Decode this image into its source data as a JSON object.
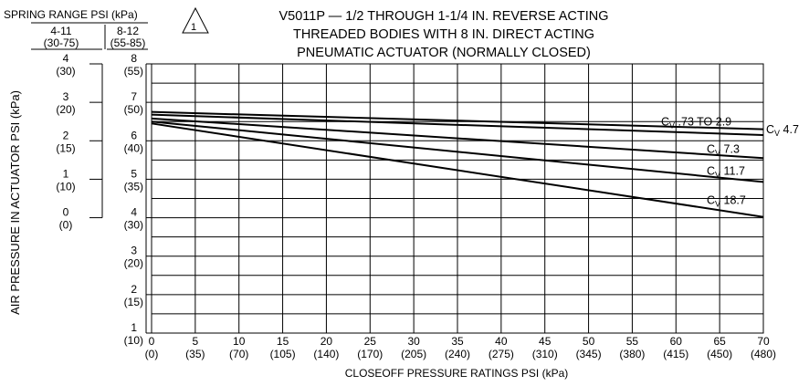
{
  "chart_data": {
    "type": "line",
    "title": [
      "V5011P — 1/2 THROUGH 1-1/4 IN. REVERSE ACTING",
      "THREADED BODIES WITH  8 IN. DIRECT ACTING",
      "PNEUMATIC ACTUATOR (NORMALLY CLOSED)"
    ],
    "xlabel": "CLOSEOFF  PRESSURE  RATINGS  PSI  (kPa)",
    "ylabel": "AIR PRESSURE IN ACTUATOR PSI (kPa)",
    "xlim": [
      0,
      70
    ],
    "ylim": [
      1,
      8
    ],
    "grid": true,
    "x_ticks": [
      {
        "psi": "0",
        "kpa": "(0)"
      },
      {
        "psi": "5",
        "kpa": "(35)"
      },
      {
        "psi": "10",
        "kpa": "(70)"
      },
      {
        "psi": "15",
        "kpa": "(105)"
      },
      {
        "psi": "20",
        "kpa": "(140)"
      },
      {
        "psi": "25",
        "kpa": "(170)"
      },
      {
        "psi": "30",
        "kpa": "(205)"
      },
      {
        "psi": "35",
        "kpa": "(240)"
      },
      {
        "psi": "40",
        "kpa": "(275)"
      },
      {
        "psi": "45",
        "kpa": "(310)"
      },
      {
        "psi": "50",
        "kpa": "(345)"
      },
      {
        "psi": "55",
        "kpa": "(380)"
      },
      {
        "psi": "60",
        "kpa": "(415)"
      },
      {
        "psi": "65",
        "kpa": "(450)"
      },
      {
        "psi": "70",
        "kpa": "(480)"
      }
    ],
    "y_ticks": [
      {
        "psi": "8",
        "kpa": "(55)"
      },
      {
        "psi": "7",
        "kpa": "(50)"
      },
      {
        "psi": "6",
        "kpa": "(40)"
      },
      {
        "psi": "5",
        "kpa": "(35)"
      },
      {
        "psi": "4",
        "kpa": "(30)"
      },
      {
        "psi": "3",
        "kpa": "(20)"
      },
      {
        "psi": "2",
        "kpa": "(15)"
      },
      {
        "psi": "1",
        "kpa": "(10)"
      }
    ],
    "spring_range": {
      "header": "SPRING RANGE PSI (kPa)",
      "note_symbol": "1",
      "col1_head": "4-11",
      "col1_sub": "(30-75)",
      "col2_head": "8-12",
      "col2_sub": "(55-85)",
      "col1_ticks": [
        {
          "psi": "4",
          "kpa": "(30)",
          "y": 8
        },
        {
          "psi": "3",
          "kpa": "(20)",
          "y": 7
        },
        {
          "psi": "2",
          "kpa": "(15)",
          "y": 6
        },
        {
          "psi": "1",
          "kpa": "(10)",
          "y": 5
        },
        {
          "psi": "0",
          "kpa": "(0)",
          "y": 4
        }
      ]
    },
    "series": [
      {
        "name": "C_V .73 TO 2.9",
        "label_main": "C",
        "label_sub": "V",
        "label_rest": " .73 TO 2.9",
        "x": [
          0,
          70
        ],
        "y": [
          6.75,
          6.3
        ]
      },
      {
        "name": "C_V 4.7",
        "label_main": "C",
        "label_sub": "V",
        "label_rest": " 4.7",
        "x": [
          0,
          70
        ],
        "y": [
          6.68,
          6.15
        ]
      },
      {
        "name": "C_V 7.3",
        "label_main": "C",
        "label_sub": "V",
        "label_rest": " 7.3",
        "x": [
          0,
          70
        ],
        "y": [
          6.58,
          5.55
        ]
      },
      {
        "name": "C_V 11.7",
        "label_main": "C",
        "label_sub": "V",
        "label_rest": " 11.7",
        "x": [
          0,
          70
        ],
        "y": [
          6.5,
          4.93
        ]
      },
      {
        "name": "C_V 18.7",
        "label_main": "C",
        "label_sub": "V",
        "label_rest": " 18.7",
        "x": [
          0,
          70
        ],
        "y": [
          6.45,
          4.02
        ]
      }
    ]
  }
}
